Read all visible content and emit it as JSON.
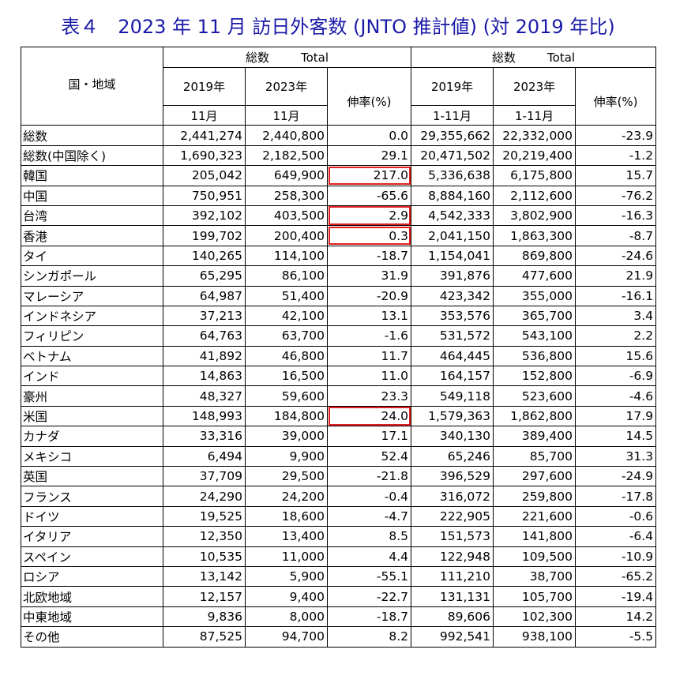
{
  "title": "表４　2023 年 11 月 訪日外客数 (JNTO 推計値) (対 2019 年比)",
  "header": {
    "region_label": "国・地域",
    "group1_label": "総数",
    "group1_total": "Total",
    "group2_label": "総数",
    "group2_total": "Total",
    "col_2019": "2019年",
    "col_2023": "2023年",
    "month_2019": "11月",
    "month_2023": "11月",
    "growth": "伸率(%)",
    "col_2019b": "2019年",
    "col_2023b": "2023年",
    "period_2019": "1-11月",
    "period_2023": "1-11月",
    "growth_b": "伸率(%)"
  },
  "highlight_color": "#e02020",
  "rows": [
    {
      "name": "総数",
      "v2019": "2,441,274",
      "v2023": "2,440,800",
      "rate": "0.0",
      "c2019": "29,355,662",
      "c2023": "22,332,000",
      "crate": "-23.9",
      "highlight": false
    },
    {
      "name": "総数(中国除く)",
      "v2019": "1,690,323",
      "v2023": "2,182,500",
      "rate": "29.1",
      "c2019": "20,471,502",
      "c2023": "20,219,400",
      "crate": "-1.2",
      "highlight": false
    },
    {
      "name": "韓国",
      "v2019": "205,042",
      "v2023": "649,900",
      "rate": "217.0",
      "c2019": "5,336,638",
      "c2023": "6,175,800",
      "crate": "15.7",
      "highlight": true
    },
    {
      "name": "中国",
      "v2019": "750,951",
      "v2023": "258,300",
      "rate": "-65.6",
      "c2019": "8,884,160",
      "c2023": "2,112,600",
      "crate": "-76.2",
      "highlight": false
    },
    {
      "name": "台湾",
      "v2019": "392,102",
      "v2023": "403,500",
      "rate": "2.9",
      "c2019": "4,542,333",
      "c2023": "3,802,900",
      "crate": "-16.3",
      "highlight": true
    },
    {
      "name": "香港",
      "v2019": "199,702",
      "v2023": "200,400",
      "rate": "0.3",
      "c2019": "2,041,150",
      "c2023": "1,863,300",
      "crate": "-8.7",
      "highlight": true
    },
    {
      "name": "タイ",
      "v2019": "140,265",
      "v2023": "114,100",
      "rate": "-18.7",
      "c2019": "1,154,041",
      "c2023": "869,800",
      "crate": "-24.6",
      "highlight": false
    },
    {
      "name": "シンガポール",
      "v2019": "65,295",
      "v2023": "86,100",
      "rate": "31.9",
      "c2019": "391,876",
      "c2023": "477,600",
      "crate": "21.9",
      "highlight": false
    },
    {
      "name": "マレーシア",
      "v2019": "64,987",
      "v2023": "51,400",
      "rate": "-20.9",
      "c2019": "423,342",
      "c2023": "355,000",
      "crate": "-16.1",
      "highlight": false
    },
    {
      "name": "インドネシア",
      "v2019": "37,213",
      "v2023": "42,100",
      "rate": "13.1",
      "c2019": "353,576",
      "c2023": "365,700",
      "crate": "3.4",
      "highlight": false
    },
    {
      "name": "フィリピン",
      "v2019": "64,763",
      "v2023": "63,700",
      "rate": "-1.6",
      "c2019": "531,572",
      "c2023": "543,100",
      "crate": "2.2",
      "highlight": false
    },
    {
      "name": "ベトナム",
      "v2019": "41,892",
      "v2023": "46,800",
      "rate": "11.7",
      "c2019": "464,445",
      "c2023": "536,800",
      "crate": "15.6",
      "highlight": false
    },
    {
      "name": "インド",
      "v2019": "14,863",
      "v2023": "16,500",
      "rate": "11.0",
      "c2019": "164,157",
      "c2023": "152,800",
      "crate": "-6.9",
      "highlight": false
    },
    {
      "name": "豪州",
      "v2019": "48,327",
      "v2023": "59,600",
      "rate": "23.3",
      "c2019": "549,118",
      "c2023": "523,600",
      "crate": "-4.6",
      "highlight": false
    },
    {
      "name": "米国",
      "v2019": "148,993",
      "v2023": "184,800",
      "rate": "24.0",
      "c2019": "1,579,363",
      "c2023": "1,862,800",
      "crate": "17.9",
      "highlight": true
    },
    {
      "name": "カナダ",
      "v2019": "33,316",
      "v2023": "39,000",
      "rate": "17.1",
      "c2019": "340,130",
      "c2023": "389,400",
      "crate": "14.5",
      "highlight": false
    },
    {
      "name": "メキシコ",
      "v2019": "6,494",
      "v2023": "9,900",
      "rate": "52.4",
      "c2019": "65,246",
      "c2023": "85,700",
      "crate": "31.3",
      "highlight": false
    },
    {
      "name": "英国",
      "v2019": "37,709",
      "v2023": "29,500",
      "rate": "-21.8",
      "c2019": "396,529",
      "c2023": "297,600",
      "crate": "-24.9",
      "highlight": false
    },
    {
      "name": "フランス",
      "v2019": "24,290",
      "v2023": "24,200",
      "rate": "-0.4",
      "c2019": "316,072",
      "c2023": "259,800",
      "crate": "-17.8",
      "highlight": false
    },
    {
      "name": "ドイツ",
      "v2019": "19,525",
      "v2023": "18,600",
      "rate": "-4.7",
      "c2019": "222,905",
      "c2023": "221,600",
      "crate": "-0.6",
      "highlight": false
    },
    {
      "name": "イタリア",
      "v2019": "12,350",
      "v2023": "13,400",
      "rate": "8.5",
      "c2019": "151,573",
      "c2023": "141,800",
      "crate": "-6.4",
      "highlight": false
    },
    {
      "name": "スペイン",
      "v2019": "10,535",
      "v2023": "11,000",
      "rate": "4.4",
      "c2019": "122,948",
      "c2023": "109,500",
      "crate": "-10.9",
      "highlight": false
    },
    {
      "name": "ロシア",
      "v2019": "13,142",
      "v2023": "5,900",
      "rate": "-55.1",
      "c2019": "111,210",
      "c2023": "38,700",
      "crate": "-65.2",
      "highlight": false
    },
    {
      "name": "北欧地域",
      "v2019": "12,157",
      "v2023": "9,400",
      "rate": "-22.7",
      "c2019": "131,131",
      "c2023": "105,700",
      "crate": "-19.4",
      "highlight": false
    },
    {
      "name": "中東地域",
      "v2019": "9,836",
      "v2023": "8,000",
      "rate": "-18.7",
      "c2019": "89,606",
      "c2023": "102,300",
      "crate": "14.2",
      "highlight": false
    },
    {
      "name": "その他",
      "v2019": "87,525",
      "v2023": "94,700",
      "rate": "8.2",
      "c2019": "992,541",
      "c2023": "938,100",
      "crate": "-5.5",
      "highlight": false
    }
  ]
}
